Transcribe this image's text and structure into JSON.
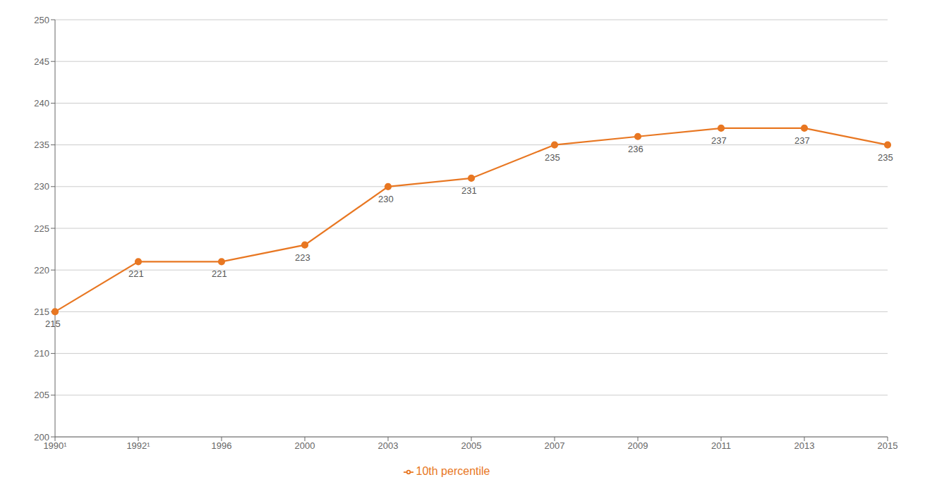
{
  "chart_data": {
    "type": "line",
    "categories": [
      "1990¹",
      "1992¹",
      "1996",
      "2000",
      "2003",
      "2005",
      "2007",
      "2009",
      "2011",
      "2013",
      "2015"
    ],
    "series": [
      {
        "name": "10th percentile",
        "color": "#E87722",
        "values": [
          215,
          221,
          221,
          223,
          230,
          231,
          235,
          236,
          237,
          237,
          235
        ]
      }
    ],
    "ylim": [
      200,
      250
    ],
    "yticks": [
      200,
      205,
      210,
      215,
      220,
      225,
      230,
      235,
      240,
      245,
      250
    ],
    "grid": true,
    "legend": "bottom",
    "data_labels": true,
    "marker": "circle"
  }
}
